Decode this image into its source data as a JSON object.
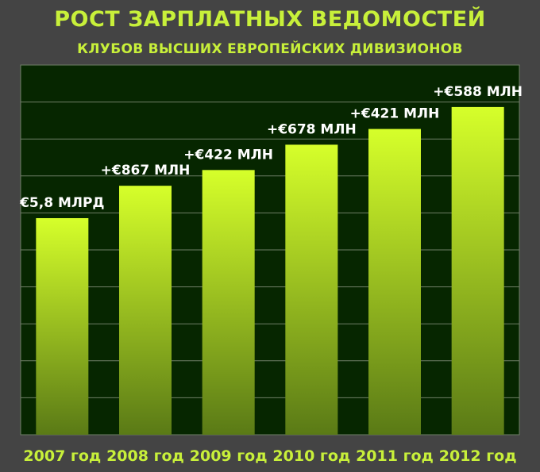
{
  "colors": {
    "background": "#444444",
    "plot_background": "#062600",
    "grid": "#6f7f66",
    "accent": "#c8f03a",
    "bar_top": "#d6ff2a",
    "bar_bottom": "#5a7a16",
    "label": "#ffffff"
  },
  "chart_data": {
    "type": "bar",
    "title": "РОСТ ЗАРПЛАТНЫХ ВЕДОМОСТЕЙ",
    "subtitle": "КЛУБОВ ВЫСШИХ ЕВРОПЕЙСКИХ ДИВИЗИОНОВ",
    "xlabel": "",
    "ylabel": "",
    "unit": "млрд €",
    "categories": [
      "2007 год",
      "2008 год",
      "2009 год",
      "2010 год",
      "2011 год",
      "2012 год"
    ],
    "values": [
      5.8,
      6.667,
      7.089,
      7.767,
      8.188,
      8.776
    ],
    "data_labels": [
      "€5,8 МЛРД",
      "+€867 МЛН",
      "+€422 МЛН",
      "+€678 МЛН",
      "+€421 МЛН",
      "+€588 МЛН"
    ],
    "ylim": [
      0,
      9.9
    ],
    "grid": true,
    "legend": "none"
  }
}
